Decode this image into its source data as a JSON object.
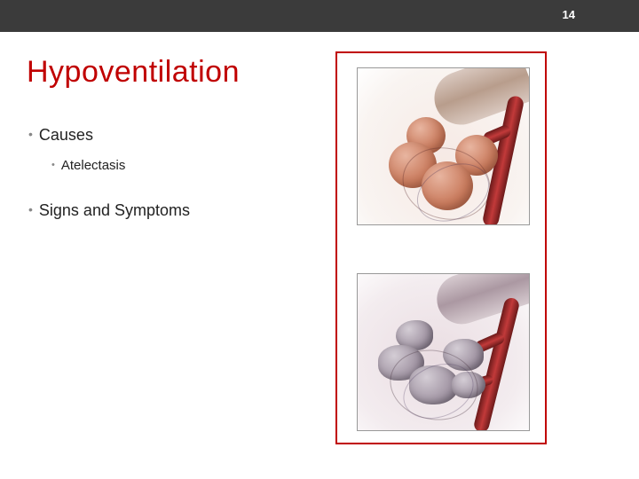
{
  "page_number": "14",
  "slide_title": "Hypoventilation",
  "title_color": "#c00000",
  "header_bar_color": "#3b3b3b",
  "frame_border_color": "#c00000",
  "bullets": {
    "b1": {
      "label": "Causes"
    },
    "b1_sub": {
      "label": "Atelectasis"
    },
    "b2": {
      "label": "Signs and Symptoms"
    }
  },
  "illustrations": {
    "top": {
      "description": "healthy-alveoli",
      "background": "#f6e9e4",
      "sac_color": "#c97a5c",
      "bronchiole_color": "#b89d8c",
      "vessel_color": "#c23a3a"
    },
    "bottom": {
      "description": "collapsed-alveoli-atelectasis",
      "background": "#eadde2",
      "sac_color": "#a69aa8",
      "bronchiole_color": "#ab98a2",
      "vessel_color": "#c23a3a"
    }
  }
}
